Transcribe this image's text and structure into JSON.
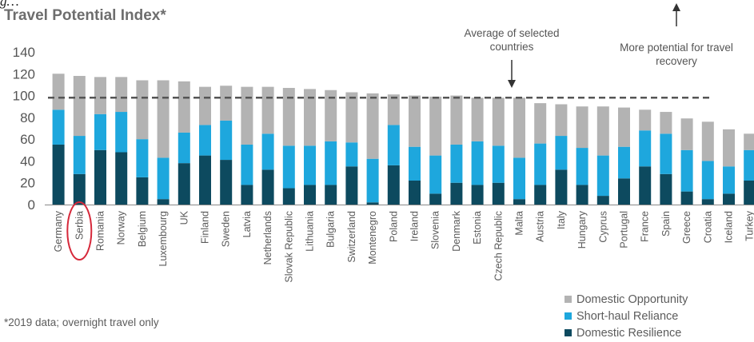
{
  "header_fragment": "g... Travel Potential Index (cut off)",
  "chart_data": {
    "type": "stacked-bar",
    "title": "Travel Potential Index*",
    "categories": [
      "Germany",
      "Serbia",
      "Romania",
      "Norway",
      "Belgium",
      "Luxembourg",
      "UK",
      "Finland",
      "Sweden",
      "Latvia",
      "Netherlands",
      "Slovak Republic",
      "Lithuania",
      "Bulgaria",
      "Switzerland",
      "Montenegro",
      "Poland",
      "Ireland",
      "Slovenia",
      "Denmark",
      "Estonia",
      "Czech Republic",
      "Malta",
      "Austria",
      "Italy",
      "Hungary",
      "Cyprus",
      "Portugal",
      "France",
      "Spain",
      "Greece",
      "Croatia",
      "Iceland",
      "Turkey"
    ],
    "series": [
      {
        "name": "Domestic Resilience",
        "color": "#0d4a5f",
        "values": [
          55,
          28,
          50,
          48,
          25,
          5,
          38,
          45,
          41,
          18,
          32,
          15,
          18,
          18,
          35,
          2,
          36,
          22,
          10,
          20,
          18,
          20,
          5,
          18,
          32,
          18,
          8,
          24,
          35,
          28,
          12,
          5,
          10,
          22
        ]
      },
      {
        "name": "Short-haul Reliance",
        "color": "#1ea7dd",
        "values": [
          32,
          35,
          33,
          37,
          35,
          38,
          28,
          28,
          36,
          37,
          33,
          39,
          36,
          40,
          22,
          40,
          37,
          31,
          35,
          35,
          40,
          34,
          38,
          38,
          31,
          34,
          37,
          29,
          33,
          37,
          38,
          35,
          25,
          28
        ]
      },
      {
        "name": "Domestic Opportunity",
        "color": "#b3b3b3",
        "values": [
          33,
          55,
          34,
          32,
          54,
          71,
          47,
          35,
          32,
          53,
          43,
          53,
          52,
          47,
          46,
          60,
          28,
          47,
          54,
          45,
          40,
          44,
          55,
          37,
          29,
          38,
          45,
          36,
          19,
          20,
          29,
          36,
          34,
          15
        ]
      }
    ],
    "yticks": [
      0,
      20,
      40,
      60,
      80,
      100,
      120,
      140
    ],
    "ylim": [
      0,
      140
    ],
    "average_line": 98,
    "highlighted_category": "Serbia",
    "annotations": {
      "average": "Average of selected countries",
      "potential": "More potential for travel recovery"
    },
    "legend_position": "bottom-right",
    "legend_order": [
      "Domestic Opportunity",
      "Short-haul Reliance",
      "Domestic Resilience"
    ],
    "footnote": "*2019 data; overnight travel only",
    "colors": {
      "axis": "#777777",
      "text": "#555555",
      "highlight": "#d6283a",
      "avgline": "#555555"
    }
  }
}
